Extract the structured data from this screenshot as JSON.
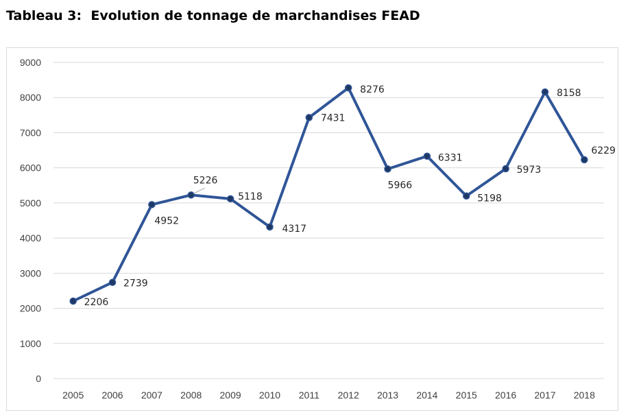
{
  "title": "Tableau 3:  Evolution de tonnage de marchandises FEAD",
  "chart_data": {
    "type": "line",
    "title": "",
    "xlabel": "",
    "ylabel": "",
    "ylim": [
      0,
      9000
    ],
    "yticks": [
      0,
      1000,
      2000,
      3000,
      4000,
      5000,
      6000,
      7000,
      8000,
      9000
    ],
    "grid": true,
    "legend": "none",
    "categories": [
      "2005",
      "2006",
      "2007",
      "2008",
      "2009",
      "2010",
      "2011",
      "2012",
      "2013",
      "2014",
      "2015",
      "2016",
      "2017",
      "2018"
    ],
    "series": [
      {
        "values": [
          2206,
          2739,
          4952,
          5226,
          5118,
          4317,
          7431,
          8276,
          5966,
          6331,
          5198,
          5973,
          8158,
          6229
        ],
        "color": "#2f5597",
        "marker_color": "#1f3864",
        "data_labels": true
      }
    ]
  }
}
